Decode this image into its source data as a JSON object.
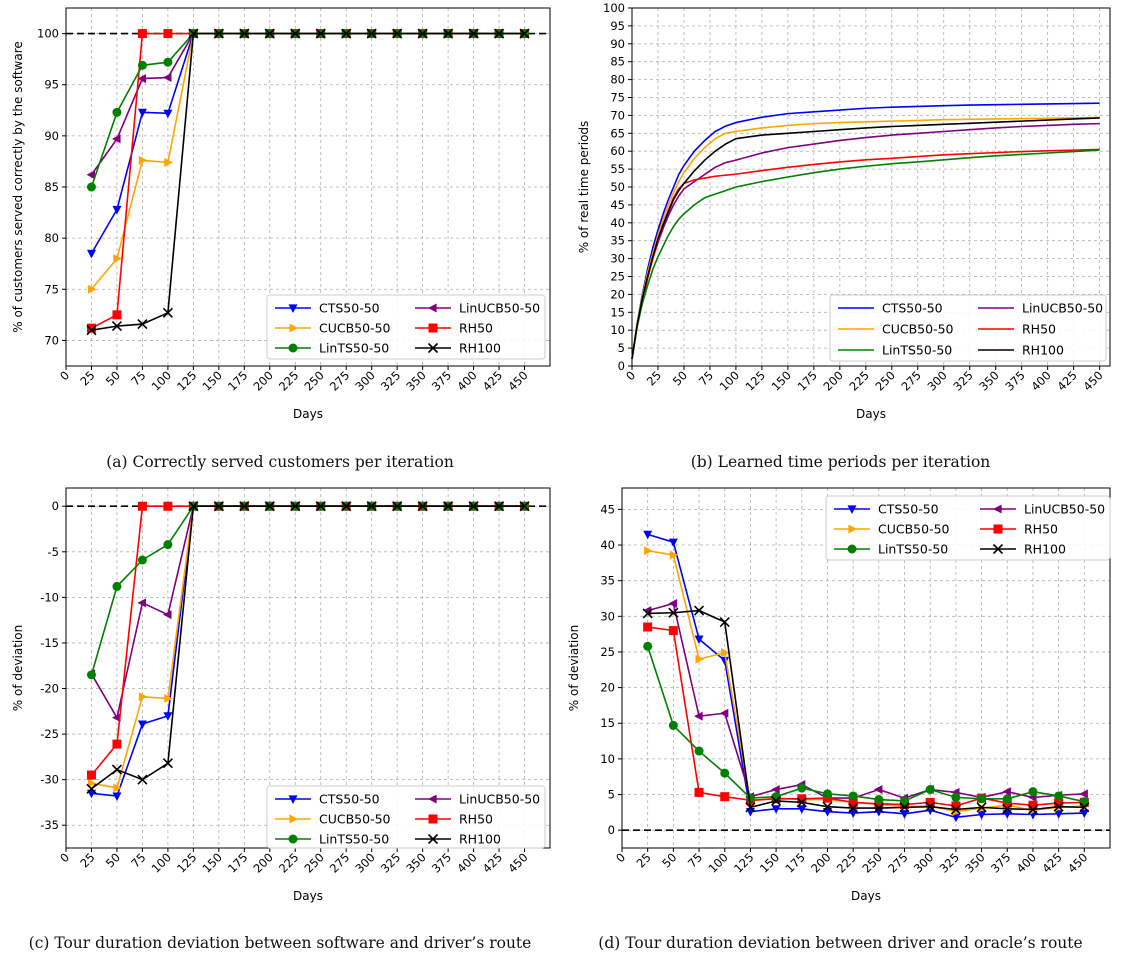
{
  "figure": {
    "captions": {
      "a": "(a) Correctly served customers per iteration",
      "b": "(b) Learned time periods per iteration",
      "c": "(c) Tour duration deviation between software and driver’s route",
      "d": "(d) Tour duration deviation between driver and oracle’s route"
    }
  },
  "chart_data": [
    {
      "id": "a",
      "type": "line",
      "title": "",
      "xlabel": "Days",
      "ylabel": "% of customers served correctly by the software",
      "xlim": [
        0,
        475
      ],
      "ylim": [
        67.5,
        102.5
      ],
      "xticks": [
        0,
        25,
        50,
        75,
        100,
        125,
        150,
        175,
        200,
        225,
        250,
        275,
        300,
        325,
        350,
        375,
        400,
        425,
        450
      ],
      "yticks": [
        70,
        75,
        80,
        85,
        90,
        95,
        100
      ],
      "grid": true,
      "legend_position": "lower-right",
      "reference_line": 100,
      "x": [
        25,
        50,
        75,
        100,
        125,
        150,
        175,
        200,
        225,
        250,
        275,
        300,
        325,
        350,
        375,
        400,
        425,
        450
      ],
      "series": [
        {
          "name": "CTS50-50",
          "color": "#0000ff",
          "marker": "triangle-down",
          "values": [
            78.5,
            82.8,
            92.3,
            92.2,
            100,
            100,
            100,
            100,
            100,
            100,
            100,
            100,
            100,
            100,
            100,
            100,
            100,
            100
          ]
        },
        {
          "name": "LinUCB50-50",
          "color": "#800080",
          "marker": "triangle-left",
          "values": [
            86.2,
            89.7,
            95.6,
            95.7,
            100,
            100,
            100,
            100,
            100,
            100,
            100,
            100,
            100,
            100,
            100,
            100,
            100,
            100
          ]
        },
        {
          "name": "CUCB50-50",
          "color": "#ffa500",
          "marker": "triangle-right",
          "values": [
            75.0,
            78.0,
            87.6,
            87.4,
            100,
            100,
            100,
            100,
            100,
            100,
            100,
            100,
            100,
            100,
            100,
            100,
            100,
            100
          ]
        },
        {
          "name": "RH50",
          "color": "#ff0000",
          "marker": "square",
          "values": [
            71.2,
            72.5,
            100,
            100,
            100,
            100,
            100,
            100,
            100,
            100,
            100,
            100,
            100,
            100,
            100,
            100,
            100,
            100
          ]
        },
        {
          "name": "LinTS50-50",
          "color": "#008000",
          "marker": "circle",
          "values": [
            85.0,
            92.3,
            96.9,
            97.2,
            100,
            100,
            100,
            100,
            100,
            100,
            100,
            100,
            100,
            100,
            100,
            100,
            100,
            100
          ]
        },
        {
          "name": "RH100",
          "color": "#000000",
          "marker": "x",
          "values": [
            71.0,
            71.4,
            71.6,
            72.7,
            100,
            100,
            100,
            100,
            100,
            100,
            100,
            100,
            100,
            100,
            100,
            100,
            100,
            100
          ]
        }
      ]
    },
    {
      "id": "b",
      "type": "line",
      "title": "",
      "xlabel": "Days",
      "ylabel": "% of real time periods",
      "xlim": [
        0,
        460
      ],
      "ylim": [
        0,
        100
      ],
      "xticks": [
        0,
        25,
        50,
        75,
        100,
        125,
        150,
        175,
        200,
        225,
        250,
        275,
        300,
        325,
        350,
        375,
        400,
        425,
        450
      ],
      "yticks": [
        0,
        5,
        10,
        15,
        20,
        25,
        30,
        35,
        40,
        45,
        50,
        55,
        60,
        65,
        70,
        75,
        80,
        85,
        90,
        95,
        100
      ],
      "grid": true,
      "legend_position": "lower-right",
      "x": [
        0,
        5,
        10,
        15,
        20,
        25,
        30,
        35,
        40,
        45,
        50,
        60,
        70,
        80,
        90,
        100,
        125,
        150,
        175,
        200,
        225,
        250,
        275,
        300,
        325,
        350,
        375,
        400,
        425,
        450
      ],
      "series": [
        {
          "name": "CTS50-50",
          "color": "#0000ff",
          "values": [
            2,
            12,
            20,
            27,
            33,
            38,
            42.5,
            46.5,
            50,
            53.5,
            56,
            60,
            63,
            65.5,
            67,
            68,
            69.5,
            70.5,
            71,
            71.5,
            72,
            72.3,
            72.5,
            72.7,
            72.9,
            73,
            73.1,
            73.2,
            73.3,
            73.4
          ]
        },
        {
          "name": "LinUCB50-50",
          "color": "#800080",
          "values": [
            2,
            11.5,
            18.5,
            24.5,
            30,
            34.5,
            38.5,
            42,
            45,
            47.5,
            49.5,
            51.5,
            53.5,
            55.5,
            56.8,
            57.5,
            59.5,
            61,
            62,
            63,
            63.8,
            64.5,
            65,
            65.5,
            66,
            66.5,
            66.9,
            67.2,
            67.5,
            67.7
          ]
        },
        {
          "name": "CUCB50-50",
          "color": "#ffa500",
          "values": [
            2,
            12,
            19.5,
            26,
            31.5,
            36.5,
            41,
            45,
            48.5,
            51.5,
            54,
            58,
            61,
            63.5,
            65,
            65.5,
            66.5,
            67.2,
            67.7,
            68,
            68.2,
            68.4,
            68.6,
            68.8,
            68.9,
            69,
            69.1,
            69.2,
            69.3,
            69.4
          ]
        },
        {
          "name": "RH50",
          "color": "#ff0000",
          "values": [
            2,
            11.5,
            18.5,
            24.5,
            30,
            35,
            39.5,
            43.5,
            47,
            49.5,
            51,
            52,
            52.5,
            53,
            53.3,
            53.6,
            54.6,
            55.5,
            56.3,
            57,
            57.6,
            58,
            58.5,
            59,
            59.3,
            59.6,
            59.9,
            60.1,
            60.3,
            60.5
          ]
        },
        {
          "name": "LinTS50-50",
          "color": "#008000",
          "values": [
            2,
            11,
            17.5,
            22.5,
            27,
            30.5,
            33.5,
            36.5,
            39,
            41,
            42.5,
            45,
            47,
            48,
            49,
            50,
            51.5,
            52.8,
            54,
            55,
            55.8,
            56.5,
            57,
            57.6,
            58.2,
            58.7,
            59.1,
            59.5,
            59.9,
            60.3
          ]
        },
        {
          "name": "RH100",
          "color": "#000000",
          "values": [
            2,
            11.5,
            19,
            25,
            30.5,
            35.5,
            39.5,
            43,
            46.5,
            49,
            51,
            54.5,
            57.5,
            60,
            62,
            63.5,
            64.5,
            65,
            65.5,
            66,
            66.5,
            66.9,
            67.2,
            67.5,
            67.8,
            68.1,
            68.4,
            68.7,
            69,
            69.3
          ]
        }
      ]
    },
    {
      "id": "c",
      "type": "line",
      "title": "",
      "xlabel": "Days",
      "ylabel": "% of deviation",
      "xlim": [
        0,
        475
      ],
      "ylim": [
        -37.5,
        2
      ],
      "xticks": [
        0,
        25,
        50,
        75,
        100,
        125,
        150,
        175,
        200,
        225,
        250,
        275,
        300,
        325,
        350,
        375,
        400,
        425,
        450
      ],
      "yticks": [
        -35,
        -30,
        -25,
        -20,
        -15,
        -10,
        -5,
        0
      ],
      "grid": true,
      "legend_position": "lower-right",
      "reference_line": 0,
      "x": [
        25,
        50,
        75,
        100,
        125,
        150,
        175,
        200,
        225,
        250,
        275,
        300,
        325,
        350,
        375,
        400,
        425,
        450
      ],
      "series": [
        {
          "name": "CTS50-50",
          "color": "#0000ff",
          "marker": "triangle-down",
          "values": [
            -31.5,
            -31.8,
            -23.9,
            -23.0,
            0,
            0,
            0,
            0,
            0,
            0,
            0,
            0,
            0,
            0,
            0,
            0,
            0,
            0
          ]
        },
        {
          "name": "LinUCB50-50",
          "color": "#800080",
          "marker": "triangle-left",
          "values": [
            -18.4,
            -23.2,
            -10.6,
            -11.9,
            0,
            0,
            0,
            0,
            0,
            0,
            0,
            0,
            0,
            0,
            0,
            0,
            0,
            0
          ]
        },
        {
          "name": "CUCB50-50",
          "color": "#ffa500",
          "marker": "triangle-right",
          "values": [
            -30.4,
            -30.9,
            -20.9,
            -21.1,
            0,
            0,
            0,
            0,
            0,
            0,
            0,
            0,
            0,
            0,
            0,
            0,
            0,
            0
          ]
        },
        {
          "name": "RH50",
          "color": "#ff0000",
          "marker": "square",
          "values": [
            -29.5,
            -26.1,
            0,
            0,
            0,
            0,
            0,
            0,
            0,
            0,
            0,
            0,
            0,
            0,
            0,
            0,
            0,
            0
          ]
        },
        {
          "name": "LinTS50-50",
          "color": "#008000",
          "marker": "circle",
          "values": [
            -18.5,
            -8.8,
            -5.9,
            -4.2,
            0,
            0,
            0,
            0,
            0,
            0,
            0,
            0,
            0,
            0,
            0,
            0,
            0,
            0
          ]
        },
        {
          "name": "RH100",
          "color": "#000000",
          "marker": "x",
          "values": [
            -31.0,
            -28.9,
            -30.0,
            -28.2,
            0,
            0,
            0,
            0,
            0,
            0,
            0,
            0,
            0,
            0,
            0,
            0,
            0,
            0
          ]
        }
      ]
    },
    {
      "id": "d",
      "type": "line",
      "title": "",
      "xlabel": "Days",
      "ylabel": "% of deviation",
      "xlim": [
        0,
        475
      ],
      "ylim": [
        -2.5,
        48
      ],
      "xticks": [
        0,
        25,
        50,
        75,
        100,
        125,
        150,
        175,
        200,
        225,
        250,
        275,
        300,
        325,
        350,
        375,
        400,
        425,
        450
      ],
      "yticks": [
        0,
        5,
        10,
        15,
        20,
        25,
        30,
        35,
        40,
        45
      ],
      "grid": true,
      "legend_position": "upper-right",
      "reference_line": 0,
      "x": [
        25,
        50,
        75,
        100,
        125,
        150,
        175,
        200,
        225,
        250,
        275,
        300,
        325,
        350,
        375,
        400,
        425,
        450
      ],
      "series": [
        {
          "name": "CTS50-50",
          "color": "#0000ff",
          "marker": "triangle-down",
          "values": [
            41.5,
            40.4,
            26.8,
            23.8,
            2.6,
            3.0,
            3.0,
            2.6,
            2.4,
            2.6,
            2.3,
            2.8,
            1.8,
            2.2,
            2.3,
            2.2,
            2.3,
            2.4
          ]
        },
        {
          "name": "LinUCB50-50",
          "color": "#800080",
          "marker": "triangle-left",
          "values": [
            30.8,
            31.8,
            16.0,
            16.4,
            4.7,
            5.7,
            6.4,
            4.5,
            4.5,
            5.7,
            4.5,
            5.7,
            5.3,
            4.6,
            5.4,
            4.6,
            4.9,
            5.1
          ]
        },
        {
          "name": "CUCB50-50",
          "color": "#ffa500",
          "marker": "triangle-right",
          "values": [
            39.2,
            38.6,
            24.0,
            24.9,
            4.1,
            4.5,
            4.3,
            4.3,
            3.9,
            3.6,
            3.3,
            3.4,
            2.6,
            3.1,
            3.5,
            2.8,
            3.2,
            3.4
          ]
        },
        {
          "name": "RH50",
          "color": "#ff0000",
          "marker": "square",
          "values": [
            28.5,
            28.0,
            5.3,
            4.7,
            4.2,
            4.4,
            4.4,
            4.5,
            3.9,
            3.7,
            3.6,
            3.9,
            3.4,
            4.5,
            3.8,
            3.5,
            3.8,
            3.9
          ]
        },
        {
          "name": "LinTS50-50",
          "color": "#008000",
          "marker": "circle",
          "values": [
            25.8,
            14.7,
            11.1,
            8.0,
            4.5,
            4.7,
            5.9,
            5.1,
            4.8,
            4.3,
            4.1,
            5.7,
            4.6,
            4.4,
            4.4,
            5.4,
            4.8,
            4.0
          ]
        },
        {
          "name": "RH100",
          "color": "#000000",
          "marker": "x",
          "values": [
            30.4,
            30.5,
            30.8,
            29.2,
            3.2,
            4.1,
            3.9,
            3.3,
            3.1,
            3.1,
            3.2,
            3.3,
            2.9,
            3.2,
            3.0,
            2.9,
            3.3,
            3.2
          ]
        }
      ]
    }
  ]
}
